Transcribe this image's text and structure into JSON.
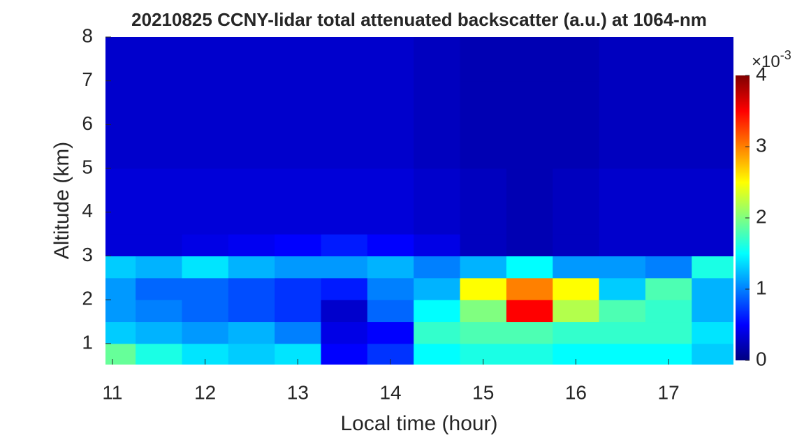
{
  "chart_data": {
    "type": "heatmap",
    "title": "20210825 CCNY-lidar total attenuated backscatter (a.u.) at 1064-nm",
    "xlabel": "Local time (hour)",
    "ylabel": "Altitude (km)",
    "x": [
      11.0,
      11.5,
      12.0,
      12.5,
      13.0,
      13.5,
      14.0,
      14.5,
      15.0,
      15.5,
      16.0,
      16.5,
      17.0,
      17.5
    ],
    "y": [
      0.75,
      1.25,
      1.75,
      2.25,
      2.75,
      3.25,
      3.75,
      4.25,
      4.75,
      5.25,
      5.75,
      6.25,
      6.75,
      7.25,
      7.75
    ],
    "z": [
      [
        1.9,
        1.6,
        1.4,
        1.3,
        1.4,
        0.5,
        0.7,
        1.5,
        1.6,
        1.6,
        1.5,
        1.5,
        1.5,
        1.3
      ],
      [
        1.3,
        1.2,
        1.1,
        1.2,
        1.0,
        0.4,
        0.5,
        1.7,
        1.8,
        1.8,
        1.7,
        1.7,
        1.7,
        1.4
      ],
      [
        1.1,
        1.0,
        0.9,
        0.8,
        0.7,
        0.3,
        0.9,
        1.5,
        2.0,
        3.5,
        2.2,
        1.8,
        1.7,
        1.2
      ],
      [
        1.1,
        0.9,
        0.9,
        0.8,
        0.7,
        0.6,
        1.0,
        1.2,
        2.5,
        3.0,
        2.5,
        1.3,
        1.8,
        1.2
      ],
      [
        1.3,
        1.2,
        1.4,
        1.2,
        1.1,
        1.1,
        1.2,
        1.0,
        1.2,
        1.5,
        1.1,
        1.1,
        1.0,
        1.6
      ],
      [
        0.35,
        0.35,
        0.4,
        0.45,
        0.5,
        0.6,
        0.5,
        0.4,
        0.25,
        0.2,
        0.25,
        0.3,
        0.3,
        0.3
      ],
      [
        0.35,
        0.35,
        0.35,
        0.35,
        0.35,
        0.35,
        0.35,
        0.3,
        0.25,
        0.2,
        0.25,
        0.3,
        0.3,
        0.3
      ],
      [
        0.35,
        0.35,
        0.35,
        0.35,
        0.35,
        0.35,
        0.35,
        0.3,
        0.25,
        0.2,
        0.25,
        0.3,
        0.3,
        0.3
      ],
      [
        0.35,
        0.35,
        0.35,
        0.35,
        0.35,
        0.35,
        0.35,
        0.3,
        0.25,
        0.2,
        0.25,
        0.3,
        0.3,
        0.3
      ],
      [
        0.3,
        0.3,
        0.3,
        0.3,
        0.3,
        0.3,
        0.3,
        0.25,
        0.2,
        0.2,
        0.2,
        0.25,
        0.25,
        0.25
      ],
      [
        0.3,
        0.3,
        0.3,
        0.3,
        0.3,
        0.3,
        0.3,
        0.25,
        0.2,
        0.2,
        0.2,
        0.25,
        0.25,
        0.25
      ],
      [
        0.3,
        0.3,
        0.3,
        0.3,
        0.3,
        0.3,
        0.3,
        0.25,
        0.2,
        0.2,
        0.2,
        0.25,
        0.25,
        0.25
      ],
      [
        0.3,
        0.3,
        0.3,
        0.3,
        0.3,
        0.3,
        0.3,
        0.25,
        0.2,
        0.2,
        0.2,
        0.25,
        0.25,
        0.25
      ],
      [
        0.3,
        0.3,
        0.3,
        0.3,
        0.3,
        0.3,
        0.3,
        0.25,
        0.2,
        0.2,
        0.2,
        0.25,
        0.25,
        0.25
      ],
      [
        0.3,
        0.3,
        0.3,
        0.3,
        0.3,
        0.3,
        0.3,
        0.25,
        0.2,
        0.2,
        0.2,
        0.25,
        0.25,
        0.25
      ]
    ],
    "xlim": [
      10.925,
      17.7
    ],
    "ylim": [
      0.52,
      8
    ],
    "xticks": [
      11,
      12,
      13,
      14,
      15,
      16,
      17
    ],
    "yticks": [
      1,
      2,
      3,
      4,
      5,
      6,
      7,
      8
    ],
    "colormap": "jet",
    "clim": [
      0,
      4
    ],
    "cticks": [
      0,
      1,
      2,
      3,
      4
    ],
    "colorbar_exponent": {
      "base": "×10",
      "power": "-3"
    }
  }
}
